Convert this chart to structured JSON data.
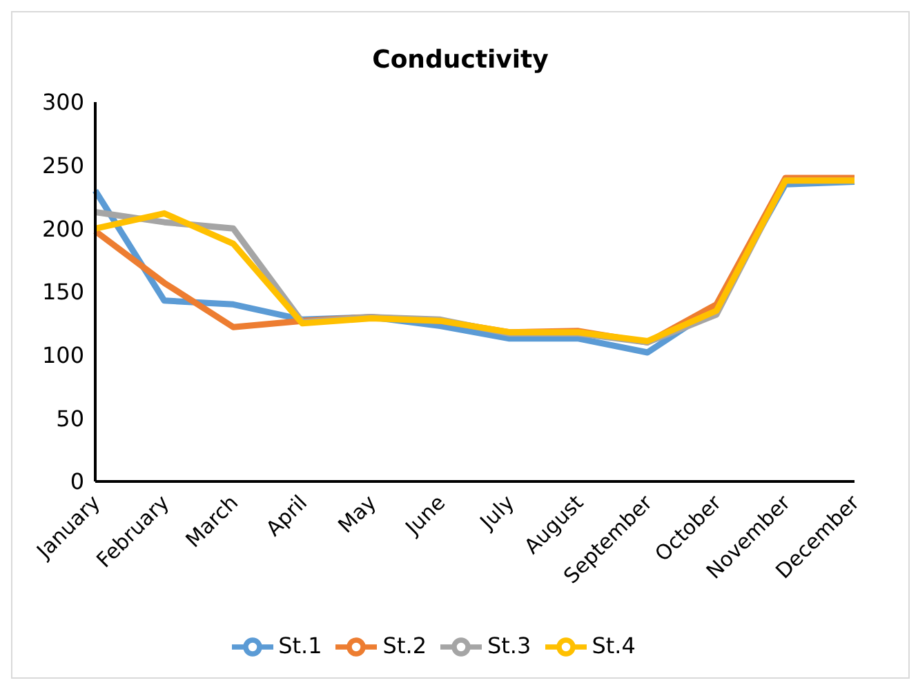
{
  "chart_data": {
    "type": "line",
    "title": "Conductivity",
    "categories": [
      "January",
      "February",
      "March",
      "April",
      "May",
      "June",
      "July",
      "August",
      "September",
      "October",
      "November",
      "December"
    ],
    "series": [
      {
        "name": "St.1",
        "color": "#5b9bd5",
        "values": [
          230,
          143,
          140,
          128,
          130,
          123,
          113,
          113,
          102,
          138,
          235,
          237
        ]
      },
      {
        "name": "St.2",
        "color": "#ed7d31",
        "values": [
          198,
          157,
          122,
          127,
          130,
          127,
          118,
          119,
          110,
          140,
          240,
          240
        ]
      },
      {
        "name": "St.3",
        "color": "#a5a5a5",
        "values": [
          213,
          205,
          200,
          126,
          130,
          128,
          117,
          117,
          110,
          132,
          238,
          238
        ]
      },
      {
        "name": "St.4",
        "color": "#ffc000",
        "values": [
          200,
          212,
          188,
          125,
          129,
          127,
          118,
          118,
          111,
          135,
          238,
          238
        ]
      }
    ],
    "ylim": [
      0,
      300
    ],
    "yticks": [
      0,
      50,
      100,
      150,
      200,
      250,
      300
    ],
    "grid": false,
    "legend": "bottom",
    "marker": "none",
    "line_style": "solid"
  }
}
